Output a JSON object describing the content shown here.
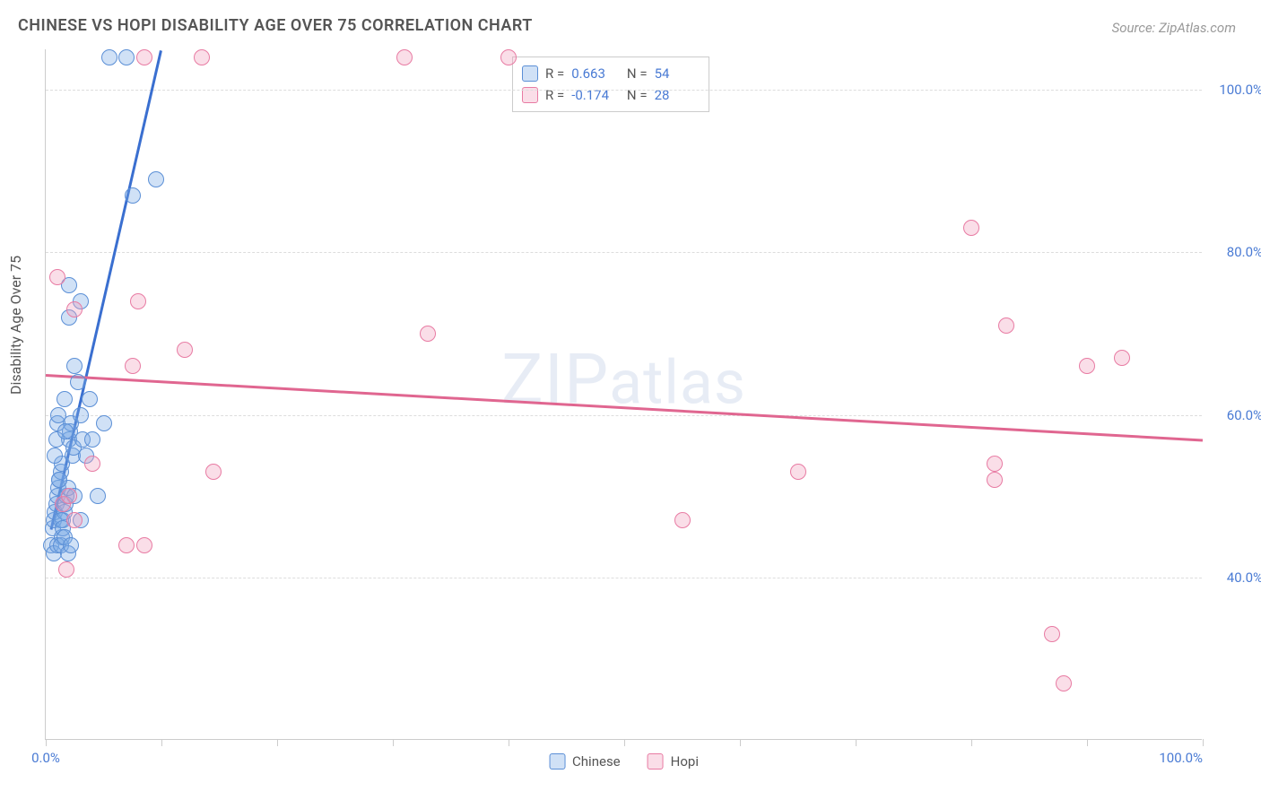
{
  "title": "CHINESE VS HOPI DISABILITY AGE OVER 75 CORRELATION CHART",
  "source": "Source: ZipAtlas.com",
  "ylabel": "Disability Age Over 75",
  "watermark": "ZIPatlas",
  "xlim": [
    0,
    100
  ],
  "ylim": [
    20,
    105
  ],
  "y_ticks": [
    40,
    60,
    80,
    100
  ],
  "y_tick_labels": [
    "40.0%",
    "60.0%",
    "80.0%",
    "100.0%"
  ],
  "x_ticks": [
    0,
    10,
    20,
    30,
    40,
    50,
    60,
    70,
    80,
    90,
    100
  ],
  "x_tick_labels": {
    "0": "0.0%",
    "100": "100.0%"
  },
  "grid_color": "#dddddd",
  "axis_color": "#cccccc",
  "value_color": "#4a7bd4",
  "background_color": "#ffffff",
  "point_radius": 9,
  "point_stroke_width": 1.5,
  "series": [
    {
      "name": "Chinese",
      "fill": "rgba(120,170,230,0.35)",
      "stroke": "#5b8fd6",
      "trend_color": "#3a6fd0",
      "R": "0.663",
      "N": "54",
      "trend": {
        "x1": 0.5,
        "y1": 46,
        "x2": 10,
        "y2": 105
      },
      "points": [
        [
          0.5,
          44
        ],
        [
          0.6,
          46
        ],
        [
          0.7,
          47
        ],
        [
          0.8,
          48
        ],
        [
          0.9,
          49
        ],
        [
          1.0,
          50
        ],
        [
          1.1,
          51
        ],
        [
          1.2,
          52
        ],
        [
          1.3,
          53
        ],
        [
          1.4,
          54
        ],
        [
          1.5,
          47
        ],
        [
          1.6,
          48
        ],
        [
          1.7,
          49
        ],
        [
          1.8,
          50
        ],
        [
          1.9,
          51
        ],
        [
          2.0,
          57
        ],
        [
          2.1,
          58
        ],
        [
          2.2,
          59
        ],
        [
          2.3,
          55
        ],
        [
          2.4,
          56
        ],
        [
          0.8,
          55
        ],
        [
          0.9,
          57
        ],
        [
          1.0,
          59
        ],
        [
          1.1,
          60
        ],
        [
          1.2,
          52
        ],
        [
          1.3,
          47
        ],
        [
          1.4,
          45
        ],
        [
          1.5,
          46
        ],
        [
          1.6,
          62
        ],
        [
          1.7,
          58
        ],
        [
          2.5,
          66
        ],
        [
          2.0,
          72
        ],
        [
          2.8,
          64
        ],
        [
          3.0,
          60
        ],
        [
          3.2,
          57
        ],
        [
          3.5,
          55
        ],
        [
          4.0,
          57
        ],
        [
          4.5,
          50
        ],
        [
          5.0,
          59
        ],
        [
          3.8,
          62
        ],
        [
          0.7,
          43
        ],
        [
          1.0,
          44
        ],
        [
          1.3,
          44
        ],
        [
          1.6,
          45
        ],
        [
          1.9,
          43
        ],
        [
          2.2,
          44
        ],
        [
          3.0,
          47
        ],
        [
          2.5,
          50
        ],
        [
          3.0,
          74
        ],
        [
          2.0,
          76
        ],
        [
          7.5,
          87
        ],
        [
          9.5,
          89
        ],
        [
          5.5,
          104
        ],
        [
          7.0,
          104
        ]
      ]
    },
    {
      "name": "Hopi",
      "fill": "rgba(240,160,190,0.35)",
      "stroke": "#e87ba3",
      "trend_color": "#e06690",
      "R": "-0.174",
      "N": "28",
      "trend": {
        "x1": 0,
        "y1": 65,
        "x2": 100,
        "y2": 57
      },
      "points": [
        [
          1.5,
          49
        ],
        [
          2.0,
          50
        ],
        [
          2.5,
          47
        ],
        [
          1.8,
          41
        ],
        [
          4.0,
          54
        ],
        [
          7.0,
          44
        ],
        [
          8.5,
          44
        ],
        [
          7.5,
          66
        ],
        [
          8.0,
          74
        ],
        [
          14.5,
          53
        ],
        [
          12.0,
          68
        ],
        [
          8.5,
          104
        ],
        [
          13.5,
          104
        ],
        [
          31.0,
          104
        ],
        [
          40.0,
          104
        ],
        [
          33.0,
          70
        ],
        [
          55.0,
          47
        ],
        [
          65.0,
          53
        ],
        [
          80.0,
          83
        ],
        [
          83.0,
          71
        ],
        [
          82.0,
          52
        ],
        [
          82.0,
          54
        ],
        [
          90.0,
          66
        ],
        [
          93.0,
          67
        ],
        [
          87.0,
          33
        ],
        [
          88.0,
          27
        ],
        [
          1.0,
          77
        ],
        [
          2.5,
          73
        ]
      ]
    }
  ],
  "legend": [
    "Chinese",
    "Hopi"
  ]
}
